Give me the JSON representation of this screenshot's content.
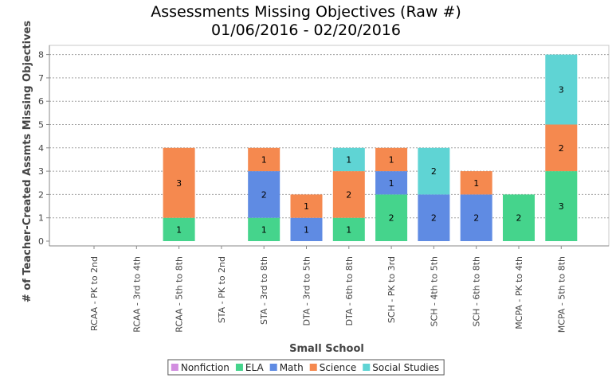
{
  "chart_data": {
    "type": "bar",
    "stacked": true,
    "title": "Assessments Missing Objectives (Raw #)",
    "subtitle": "01/06/2016 - 02/20/2016",
    "xlabel": "Small School",
    "ylabel": "# of Teacher-Created Assmts Missing Objectives",
    "ylim": [
      0,
      8.4
    ],
    "yticks": [
      0,
      1,
      2,
      3,
      4,
      5,
      6,
      7,
      8
    ],
    "grid": true,
    "legend_position": "bottom",
    "categories": [
      "RCAA - PK to 2nd",
      "RCAA - 3rd to 4th",
      "RCAA - 5th to 8th",
      "STA - PK to 2nd",
      "STA - 3rd to 8th",
      "DTA - 3rd to 5th",
      "DTA - 6th to 8th",
      "SCH - PK to 3rd",
      "SCH - 4th to 5th",
      "SCH - 6th to 8th",
      "MCPA - PK to 4th",
      "MCPA - 5th to 8th"
    ],
    "series": [
      {
        "name": "Nonfiction",
        "color": "#d28ee0",
        "values": [
          0,
          0,
          0,
          0,
          0,
          0,
          0,
          0,
          0,
          0,
          0,
          0
        ]
      },
      {
        "name": "ELA",
        "color": "#45d48c",
        "values": [
          0,
          0,
          1,
          0,
          1,
          0,
          1,
          2,
          0,
          0,
          2,
          3
        ]
      },
      {
        "name": "Math",
        "color": "#5f8be3",
        "values": [
          0,
          0,
          0,
          0,
          2,
          1,
          0,
          1,
          2,
          2,
          0,
          0
        ]
      },
      {
        "name": "Science",
        "color": "#f5894f",
        "values": [
          0,
          0,
          3,
          0,
          1,
          1,
          2,
          1,
          0,
          1,
          0,
          2
        ]
      },
      {
        "name": "Social Studies",
        "color": "#5fd4d4",
        "values": [
          0,
          0,
          0,
          0,
          0,
          0,
          1,
          0,
          2,
          0,
          0,
          3
        ]
      }
    ]
  }
}
